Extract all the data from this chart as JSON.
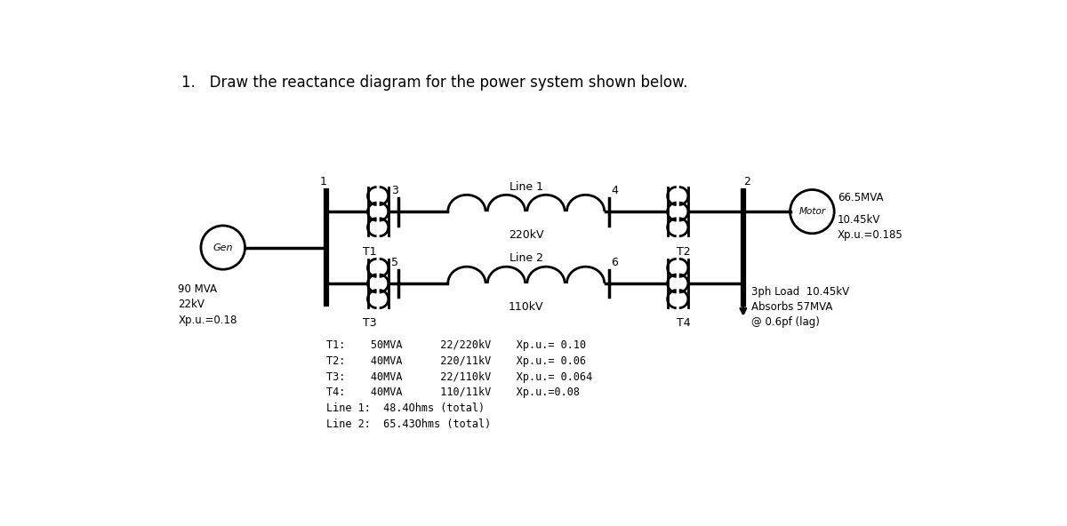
{
  "title": "1.   Draw the reactance diagram for the power system shown below.",
  "title_fontsize": 12,
  "bg_color": "#ffffff",
  "line_color": "#000000",
  "lw": 2.0,
  "gen_label": "Gen",
  "gen_specs": [
    "90 MVA",
    "22kV",
    "Xp.u.=0.18"
  ],
  "motor_label": "Motor",
  "motor_specs": [
    "66.5MVA",
    "10.45kV",
    "Xp.u.=0.185"
  ],
  "load_specs": [
    "3ph Load  10.45kV",
    "Absorbs 57MVA",
    "@ 0.6pf (lag)"
  ],
  "line1_label": "Line 1",
  "line2_label": "Line 2",
  "line1_kv": "220kV",
  "line2_kv": "110kV",
  "specs_lines": [
    "T1:    50MVA      22/220kV    Xp.u.= 0.10",
    "T2:    40MVA      220/11kV    Xp.u.= 0.06",
    "T3:    40MVA      22/110kV    Xp.u.= 0.064",
    "T4:    40MVA      110/11kV    Xp.u.=0.08",
    "Line 1:  48.4Ohms (total)",
    "Line 2:  65.43Ohms (total)"
  ]
}
